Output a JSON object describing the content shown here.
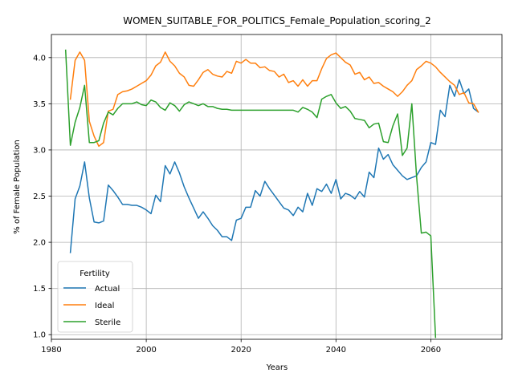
{
  "chart_data": {
    "type": "line",
    "title": "WOMEN_SUITABLE_FOR_POLITICS_Female_Population_scoring_2",
    "xlabel": "Years",
    "ylabel": "% of Female Population",
    "xlim": [
      1980,
      2075
    ],
    "ylim": [
      0.95,
      4.25
    ],
    "xticks": [
      1980,
      2000,
      2020,
      2040,
      2060
    ],
    "yticks": [
      1.0,
      1.5,
      2.0,
      2.5,
      3.0,
      3.5,
      4.0
    ],
    "xtick_labels": [
      "1980",
      "2000",
      "2020",
      "2040",
      "2060"
    ],
    "ytick_labels": [
      "1.0",
      "1.5",
      "2.0",
      "2.5",
      "3.0",
      "3.5",
      "4.0"
    ],
    "grid": true,
    "legend": {
      "title": "Fertility",
      "location": "lower-left"
    },
    "series": [
      {
        "name": "Actual",
        "color": "#1f77b4",
        "x": [
          1984,
          1985,
          1986,
          1987,
          1988,
          1989,
          1990,
          1991,
          1992,
          1993,
          1994,
          1995,
          1996,
          1997,
          1998,
          1999,
          2000,
          2001,
          2002,
          2003,
          2004,
          2005,
          2006,
          2007,
          2008,
          2009,
          2010,
          2011,
          2012,
          2013,
          2014,
          2015,
          2016,
          2017,
          2018,
          2019,
          2020,
          2021,
          2022,
          2023,
          2024,
          2025,
          2026,
          2027,
          2028,
          2029,
          2030,
          2031,
          2032,
          2033,
          2034,
          2035,
          2036,
          2037,
          2038,
          2039,
          2040,
          2041,
          2042,
          2043,
          2044,
          2045,
          2046,
          2047,
          2048,
          2049,
          2050,
          2051,
          2052,
          2053,
          2054,
          2055,
          2056,
          2057,
          2058,
          2059,
          2060,
          2061,
          2062,
          2063,
          2064,
          2065,
          2066,
          2067,
          2068,
          2069,
          2070
        ],
        "values": [
          1.89,
          2.47,
          2.61,
          2.87,
          2.48,
          2.22,
          2.21,
          2.23,
          2.62,
          2.56,
          2.49,
          2.41,
          2.41,
          2.4,
          2.4,
          2.38,
          2.35,
          2.31,
          2.51,
          2.44,
          2.83,
          2.74,
          2.87,
          2.75,
          2.6,
          2.48,
          2.37,
          2.26,
          2.33,
          2.26,
          2.18,
          2.13,
          2.06,
          2.06,
          2.02,
          2.24,
          2.26,
          2.38,
          2.38,
          2.56,
          2.5,
          2.66,
          2.58,
          2.51,
          2.44,
          2.37,
          2.35,
          2.29,
          2.38,
          2.33,
          2.53,
          2.4,
          2.58,
          2.55,
          2.63,
          2.53,
          2.68,
          2.47,
          2.53,
          2.51,
          2.47,
          2.55,
          2.49,
          2.76,
          2.7,
          3.02,
          2.9,
          2.95,
          2.84,
          2.78,
          2.72,
          2.68,
          2.7,
          2.72,
          2.81,
          2.87,
          3.08,
          3.06,
          3.43,
          3.36,
          3.7,
          3.58,
          3.76,
          3.61,
          3.66,
          3.45,
          3.41
        ]
      },
      {
        "name": "Ideal",
        "color": "#ff7f0e",
        "x": [
          1984,
          1985,
          1986,
          1987,
          1988,
          1989,
          1990,
          1991,
          1992,
          1993,
          1994,
          1995,
          1996,
          1997,
          1998,
          1999,
          2000,
          2001,
          2002,
          2003,
          2004,
          2005,
          2006,
          2007,
          2008,
          2009,
          2010,
          2011,
          2012,
          2013,
          2014,
          2015,
          2016,
          2017,
          2018,
          2019,
          2020,
          2021,
          2022,
          2023,
          2024,
          2025,
          2026,
          2027,
          2028,
          2029,
          2030,
          2031,
          2032,
          2033,
          2034,
          2035,
          2036,
          2037,
          2038,
          2039,
          2040,
          2041,
          2042,
          2043,
          2044,
          2045,
          2046,
          2047,
          2048,
          2049,
          2050,
          2051,
          2052,
          2053,
          2054,
          2055,
          2056,
          2057,
          2058,
          2059,
          2060,
          2061,
          2062,
          2063,
          2064,
          2065,
          2066,
          2067,
          2068,
          2069,
          2070
        ],
        "values": [
          3.55,
          3.97,
          4.06,
          3.97,
          3.31,
          3.15,
          3.04,
          3.08,
          3.42,
          3.44,
          3.6,
          3.63,
          3.64,
          3.66,
          3.69,
          3.72,
          3.75,
          3.81,
          3.91,
          3.95,
          4.06,
          3.96,
          3.91,
          3.83,
          3.79,
          3.7,
          3.69,
          3.76,
          3.84,
          3.87,
          3.82,
          3.8,
          3.79,
          3.85,
          3.83,
          3.96,
          3.94,
          3.98,
          3.94,
          3.94,
          3.89,
          3.9,
          3.86,
          3.85,
          3.79,
          3.82,
          3.73,
          3.75,
          3.69,
          3.76,
          3.69,
          3.75,
          3.75,
          3.88,
          3.99,
          4.03,
          4.05,
          4.0,
          3.95,
          3.92,
          3.82,
          3.84,
          3.76,
          3.79,
          3.72,
          3.73,
          3.69,
          3.66,
          3.63,
          3.58,
          3.63,
          3.7,
          3.75,
          3.87,
          3.91,
          3.96,
          3.94,
          3.9,
          3.84,
          3.79,
          3.74,
          3.7,
          3.6,
          3.62,
          3.51,
          3.5,
          3.41
        ]
      },
      {
        "name": "Sterile",
        "color": "#2ca02c",
        "x": [
          1983,
          1984,
          1985,
          1986,
          1987,
          1988,
          1989,
          1990,
          1991,
          1992,
          1993,
          1994,
          1995,
          1996,
          1997,
          1998,
          1999,
          2000,
          2001,
          2002,
          2003,
          2004,
          2005,
          2006,
          2007,
          2008,
          2009,
          2010,
          2011,
          2012,
          2013,
          2014,
          2015,
          2016,
          2017,
          2018,
          2019,
          2020,
          2021,
          2022,
          2023,
          2024,
          2025,
          2026,
          2027,
          2028,
          2029,
          2030,
          2031,
          2032,
          2033,
          2034,
          2035,
          2036,
          2037,
          2038,
          2039,
          2040,
          2041,
          2042,
          2043,
          2044,
          2045,
          2046,
          2047,
          2048,
          2049,
          2050,
          2051,
          2052,
          2053,
          2054,
          2055,
          2056,
          2057,
          2058,
          2059,
          2060,
          2061
        ],
        "values": [
          4.08,
          3.05,
          3.3,
          3.46,
          3.7,
          3.08,
          3.08,
          3.1,
          3.29,
          3.41,
          3.38,
          3.45,
          3.5,
          3.5,
          3.5,
          3.52,
          3.49,
          3.48,
          3.54,
          3.52,
          3.46,
          3.43,
          3.51,
          3.48,
          3.42,
          3.49,
          3.52,
          3.5,
          3.48,
          3.5,
          3.47,
          3.47,
          3.45,
          3.44,
          3.44,
          3.43,
          3.43,
          3.43,
          3.43,
          3.43,
          3.43,
          3.43,
          3.43,
          3.43,
          3.43,
          3.43,
          3.43,
          3.43,
          3.43,
          3.41,
          3.46,
          3.44,
          3.41,
          3.35,
          3.55,
          3.58,
          3.6,
          3.51,
          3.45,
          3.47,
          3.42,
          3.34,
          3.33,
          3.32,
          3.24,
          3.28,
          3.29,
          3.09,
          3.08,
          3.26,
          3.39,
          2.94,
          3.02,
          3.5,
          2.71,
          2.1,
          2.11,
          2.07,
          0.97
        ]
      }
    ]
  }
}
